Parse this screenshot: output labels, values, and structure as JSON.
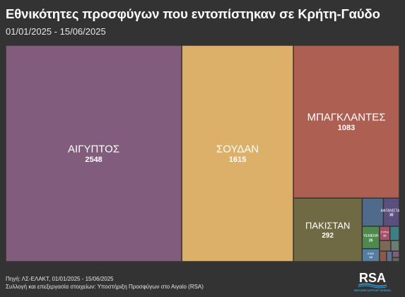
{
  "title": "Εθνικότητες προσφύγων που εντοπίστηκαν σε Κρήτη-Γαύδο",
  "subtitle": "01/01/2025 - 15/06/2025",
  "footer": {
    "source": "Πηγή: ΛΣ-ΕΛΑΚΤ, 01/01/2025 - 15/06/2025",
    "credit": "Συλλογή και επεξεργασία στοιχείων: Υποστήριξη Προσφύγων στο Αιγαίο (RSA)"
  },
  "logo": {
    "text": "RSA",
    "tagline": "REFUGEE SUPPORT AEGEAN"
  },
  "chart_data": {
    "type": "treemap",
    "title": "Εθνικότητες προσφύγων που εντοπίστηκαν σε Κρήτη-Γαύδο",
    "subtitle": "01/01/2025 - 15/06/2025",
    "items": [
      {
        "name": "ΑΙΓΥΠΤΟΣ",
        "value": 2548,
        "color": "#825c7c"
      },
      {
        "name": "ΣΟΥΔΑΝ",
        "value": 1615,
        "color": "#ddb06a"
      },
      {
        "name": "ΜΠΑΓΚΛΑΝΤΕΣ",
        "value": 1083,
        "color": "#ad6052"
      },
      {
        "name": "ΠΑΚΙΣΤΑΝ",
        "value": 292,
        "color": "#6f6a44"
      },
      {
        "name": "ΑΦΓΑΝΙΣΤΑΝ",
        "value": 30,
        "color": "#5b4f80"
      },
      {
        "name": "ΥΕΜΕΝΗ",
        "value": 26,
        "color": "#4e8a4e"
      },
      {
        "name": "ΙΡΑΝ",
        "value": 15,
        "color": "#567ea0"
      },
      {
        "name": "ΣΥΡΙΑ",
        "value": 10,
        "color": "#a6506a"
      },
      {
        "name": "",
        "value": 40,
        "color": "#4f6a8a"
      },
      {
        "name": "",
        "value": 9,
        "color": "#3d7f82"
      },
      {
        "name": "",
        "value": 8,
        "color": "#7a6a55"
      },
      {
        "name": "",
        "value": 6,
        "color": "#6a7d70"
      },
      {
        "name": "",
        "value": 5,
        "color": "#8a5a4a"
      },
      {
        "name": "",
        "value": 4,
        "color": "#5f6f8f"
      },
      {
        "name": "",
        "value": 3,
        "color": "#7c5f7a"
      },
      {
        "name": "",
        "value": 2,
        "color": "#66665a"
      }
    ]
  }
}
